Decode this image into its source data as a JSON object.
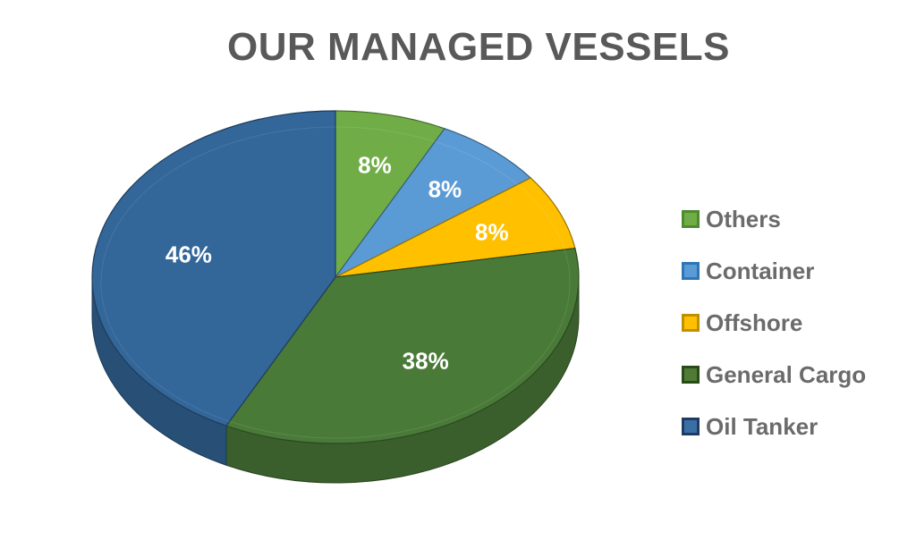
{
  "chart_data": {
    "type": "pie",
    "title": "OUR MANAGED VESSELS",
    "categories": [
      "Others",
      "Container",
      "Offshore",
      "General Cargo",
      "Oil Tanker"
    ],
    "values": [
      8,
      8,
      8,
      38,
      46
    ],
    "value_labels": [
      "8%",
      "8%",
      "8%",
      "38%",
      "46%"
    ],
    "colors": [
      "#70ad47",
      "#5b9bd5",
      "#ffc000",
      "#4a7a38",
      "#336699"
    ],
    "legend_colors": {
      "fill": [
        "#70ad47",
        "#5b9bd5",
        "#ffc000",
        "#4f7b35",
        "#3a6fa6"
      ],
      "border": [
        "#4e8a30",
        "#2e75b6",
        "#bf8f00",
        "#2a4a18",
        "#1f3b63"
      ]
    },
    "style": "3d",
    "legend_position": "right"
  }
}
